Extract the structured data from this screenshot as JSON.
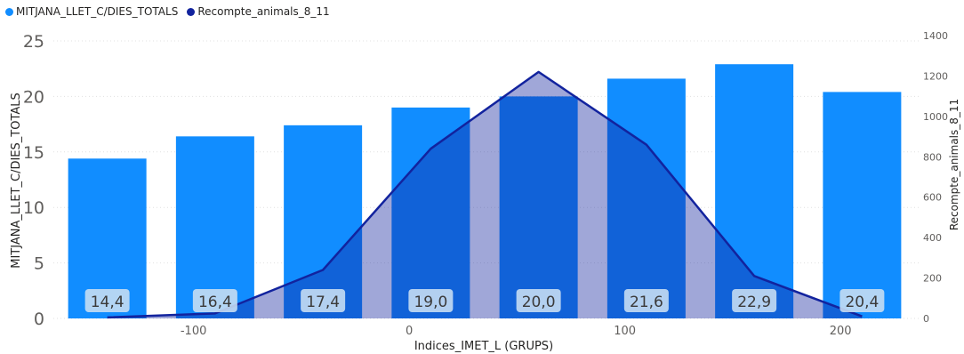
{
  "chart_data": {
    "type": "bar",
    "xlabel": "Indices_IMET_L (GRUPS)",
    "ylabel": "MITJANA_LLET_C/DIES_TOTALS",
    "y2label": "Recompte_animals_8_11",
    "x_ticks": [
      "-100",
      "0",
      "100",
      "200"
    ],
    "y_ticks": [
      "0",
      "5",
      "10",
      "15",
      "20",
      "25"
    ],
    "y2_ticks": [
      "0",
      "200",
      "400",
      "600",
      "800",
      "1000",
      "1200",
      "1400"
    ],
    "ylim": [
      0,
      25
    ],
    "y2lim": [
      0,
      1400
    ],
    "grid": true,
    "legend_position": "top-left",
    "colors": {
      "bars": "#118DFF",
      "line": "#12239E",
      "area": "#12239E",
      "label_bg": "#C9DFF3",
      "label_text": "#3B3A39"
    },
    "series": [
      {
        "name": "MITJANA_LLET_C/DIES_TOTALS",
        "type": "bar",
        "x": [
          -140,
          -90,
          -40,
          10,
          60,
          110,
          160,
          210
        ],
        "values": [
          14.4,
          16.4,
          17.4,
          19.0,
          20.0,
          21.6,
          22.9,
          20.4
        ],
        "labels": [
          "14,4",
          "16,4",
          "17,4",
          "19,0",
          "20,0",
          "21,6",
          "22,9",
          "20,4"
        ]
      },
      {
        "name": "Recompte_animals_8_11",
        "type": "area-line",
        "x": [
          -140,
          -90,
          -40,
          10,
          60,
          110,
          160,
          210
        ],
        "values": [
          5,
          25,
          240,
          840,
          1220,
          860,
          210,
          10
        ]
      }
    ]
  }
}
